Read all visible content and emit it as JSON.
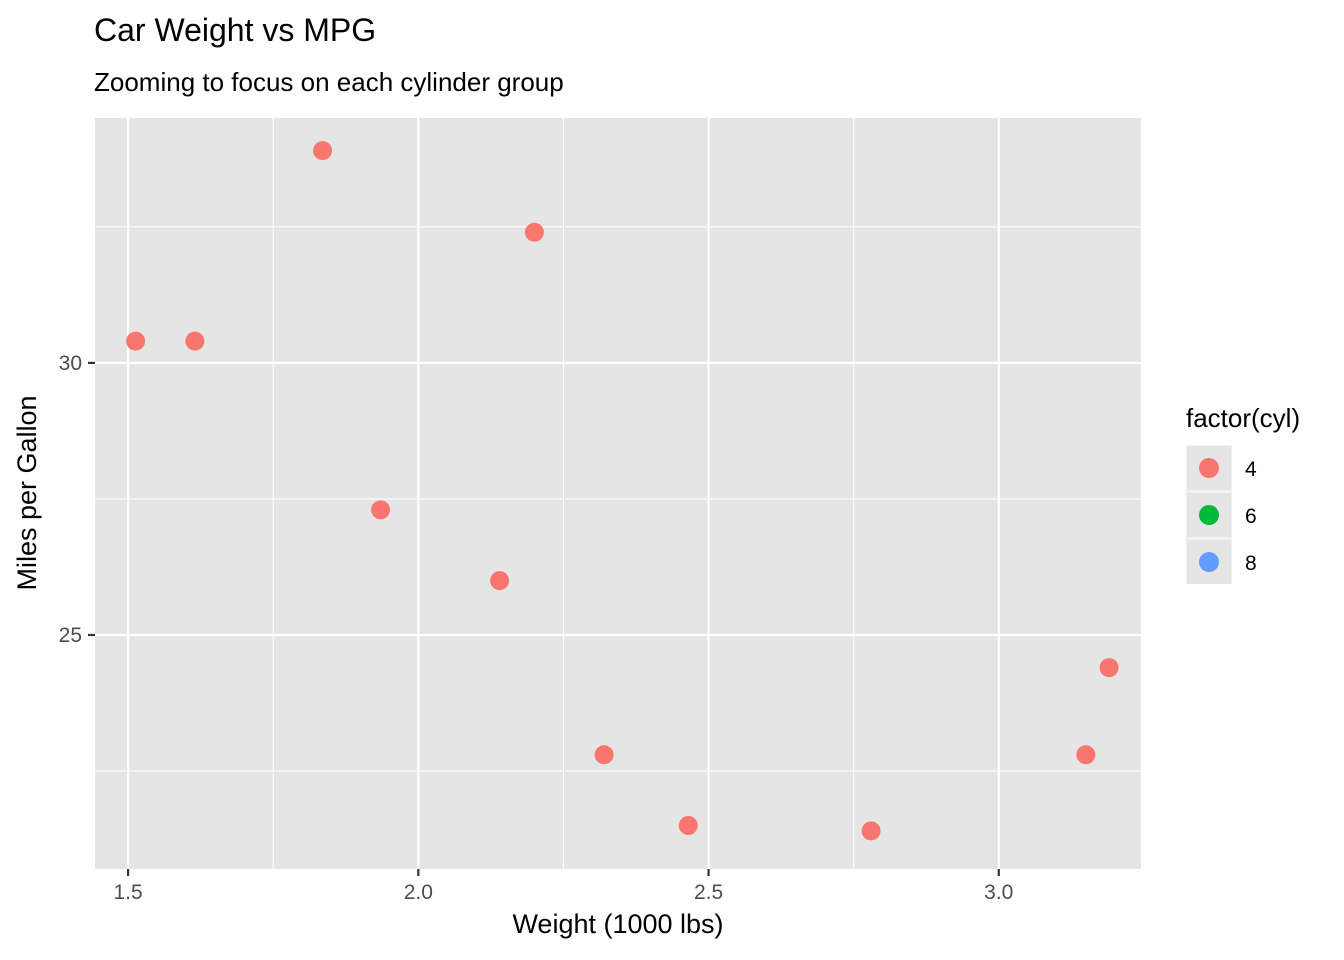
{
  "chart_data": {
    "type": "scatter",
    "title": "Car Weight vs MPG",
    "subtitle": "Zooming to focus on each cylinder group",
    "xlabel": "Weight (1000 lbs)",
    "ylabel": "Miles per Gallon",
    "xlim": [
      1.443,
      3.245
    ],
    "ylim": [
      20.7,
      34.5
    ],
    "x_ticks": [
      1.5,
      2.0,
      2.5,
      3.0
    ],
    "x_tick_labels": [
      "1.5",
      "2.0",
      "2.5",
      "3.0"
    ],
    "y_ticks": [
      25,
      30
    ],
    "y_tick_labels": [
      "25",
      "30"
    ],
    "grid": true,
    "background": "#e5e5e5",
    "legend": {
      "title": "factor(cyl)",
      "position": "right",
      "items": [
        {
          "label": "4",
          "color": "#f8766d"
        },
        {
          "label": "6",
          "color": "#00ba38"
        },
        {
          "label": "8",
          "color": "#619cff"
        }
      ]
    },
    "series": [
      {
        "name": "4",
        "color": "#f8766d",
        "points": [
          {
            "x": 1.513,
            "y": 30.4
          },
          {
            "x": 1.615,
            "y": 30.4
          },
          {
            "x": 1.835,
            "y": 33.9
          },
          {
            "x": 1.935,
            "y": 27.3
          },
          {
            "x": 2.14,
            "y": 26.0
          },
          {
            "x": 2.2,
            "y": 32.4
          },
          {
            "x": 2.32,
            "y": 22.8
          },
          {
            "x": 2.465,
            "y": 21.5
          },
          {
            "x": 2.78,
            "y": 21.4
          },
          {
            "x": 3.15,
            "y": 22.8
          },
          {
            "x": 3.19,
            "y": 24.4
          }
        ]
      }
    ]
  }
}
